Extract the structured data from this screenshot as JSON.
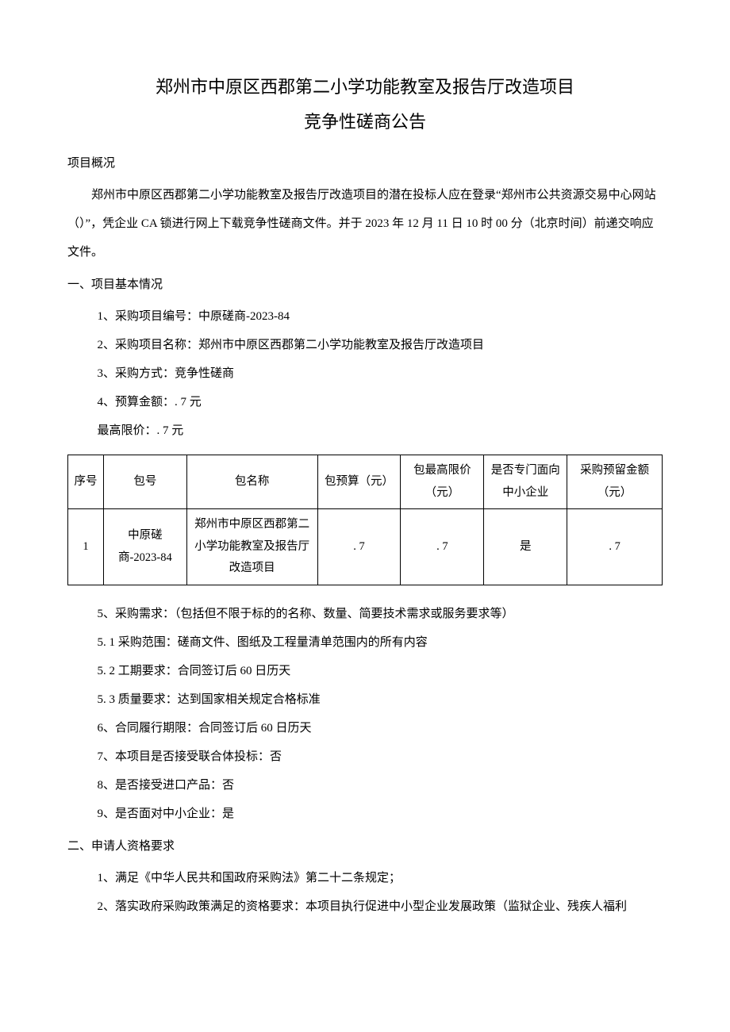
{
  "title": "郑州市中原区西郡第二小学功能教室及报告厅改造项目",
  "subtitle": "竞争性磋商公告",
  "overview_heading": "项目概况",
  "overview_body": "郑州市中原区西郡第二小学功能教室及报告厅改造项目的潜在投标人应在登录“郑州市公共资源交易中心网站（）”，凭企业 CA 锁进行网上下载竞争性磋商文件。并于 2023 年 12 月 11 日 10 时 00 分（北京时间）前递交响应文件。",
  "sec1_heading": "一、项目基本情况",
  "sec1_items": {
    "i1": "1、采购项目编号：中原磋商-2023-84",
    "i2": "2、采购项目名称：郑州市中原区西郡第二小学功能教室及报告厅改造项目",
    "i3": "3、采购方式：竞争性磋商",
    "i4": "4、预算金额：. 7 元",
    "i4b": "最高限价：. 7 元"
  },
  "table": {
    "headers": {
      "seq": "序号",
      "pkg_no": "包号",
      "pkg_name": "包名称",
      "budget": "包预算（元）",
      "limit": "包最高限价（元）",
      "sme": "是否专门面向中小企业",
      "reserve": "采购预留金额（元）"
    },
    "rows": [
      {
        "seq": "1",
        "pkg_no": "中原磋商-2023-84",
        "pkg_name": "郑州市中原区西郡第二小学功能教室及报告厅改造项目",
        "budget": ". 7",
        "limit": ". 7",
        "sme": "是",
        "reserve": ". 7"
      }
    ]
  },
  "sec1_items_after": {
    "i5": "5、采购需求：（包括但不限于标的的名称、数量、简要技术需求或服务要求等）",
    "i5_1": "5. 1  采购范围：磋商文件、图纸及工程量清单范围内的所有内容",
    "i5_2": "5. 2 工期要求：合同签订后 60 日历天",
    "i5_3": "5.  3 质量要求：达到国家相关规定合格标准",
    "i6": "6、合同履行期限：合同签订后 60 日历天",
    "i7": "7、本项目是否接受联合体投标：否",
    "i8": "8、是否接受进口产品：否",
    "i9": "9、是否面对中小企业：是"
  },
  "sec2_heading": "二、申请人资格要求",
  "sec2_items": {
    "i1": "1、满足《中华人民共和国政府采购法》第二十二条规定；",
    "i2": "2、落实政府采购政策满足的资格要求：本项目执行促进中小型企业发展政策（监狱企业、残疾人福利"
  }
}
